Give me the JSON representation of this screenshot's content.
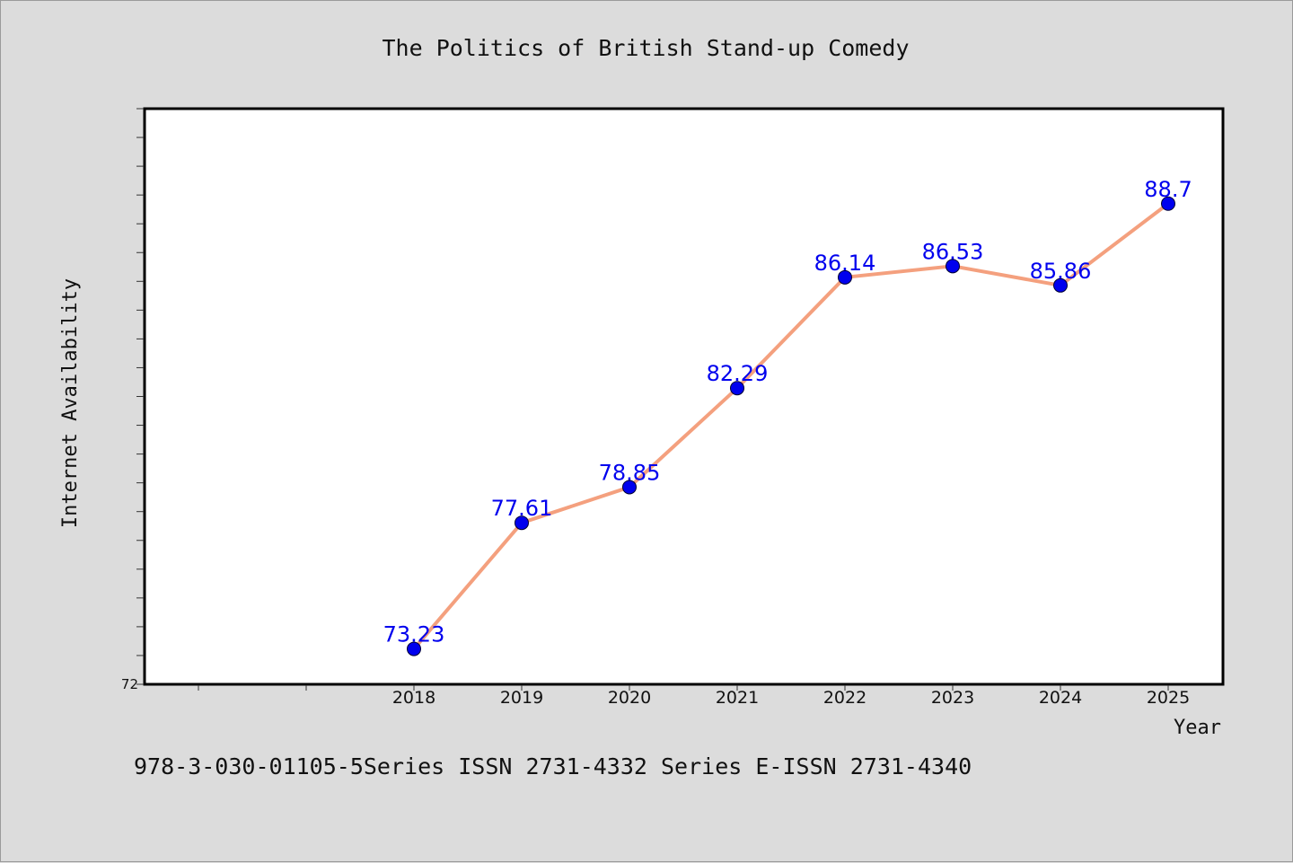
{
  "chart_data": {
    "type": "line",
    "title": "The Politics of British Stand-up Comedy",
    "xlabel": "Year",
    "ylabel": "Internet Availability",
    "x": [
      "2018",
      "2019",
      "2020",
      "2021",
      "2022",
      "2023",
      "2024",
      "2025"
    ],
    "series": [
      {
        "values": [
          73.23,
          77.61,
          78.85,
          82.29,
          86.14,
          86.53,
          85.86,
          88.7
        ],
        "labels": [
          "73.23",
          "77.61",
          "78.85",
          "82.29",
          "86.14",
          "86.53",
          "85.86",
          "88.7"
        ]
      }
    ],
    "ylim": [
      72,
      92
    ],
    "ytick_labels": [
      "72"
    ],
    "grid": false,
    "line_color": "#f4a07e",
    "marker_color": "#0000ee",
    "label_color": "#0000ee"
  },
  "footer": "978-3-030-01105-5Series ISSN 2731-4332 Series E-ISSN 2731-4340"
}
